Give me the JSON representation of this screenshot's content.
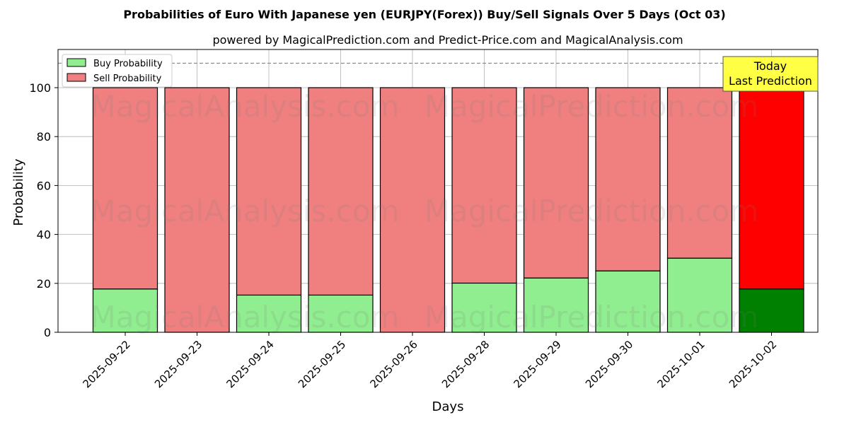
{
  "chart_data": {
    "type": "bar",
    "stacked": true,
    "title": "Probabilities of Euro With Japanese yen (EURJPY(Forex)) Buy/Sell Signals Over 5 Days (Oct 03)",
    "subtitle": "powered by MagicalPrediction.com and Predict-Price.com and MagicalAnalysis.com",
    "xlabel": "Days",
    "ylabel": "Probability",
    "ylim": [
      0,
      115
    ],
    "yticks": [
      0,
      20,
      40,
      60,
      80,
      100
    ],
    "grid": true,
    "legend_position": "top-left",
    "reference_line": 110,
    "categories": [
      "2025-09-22",
      "2025-09-23",
      "2025-09-24",
      "2025-09-25",
      "2025-09-26",
      "2025-09-28",
      "2025-09-29",
      "2025-09-30",
      "2025-10-01",
      "2025-10-02"
    ],
    "series": [
      {
        "name": "Buy Probability",
        "values": [
          17.7,
          0,
          15.2,
          15.2,
          0,
          20.1,
          22.2,
          25.1,
          30.3,
          17.7
        ],
        "color": "#90ee90",
        "highlight_color": "#008000"
      },
      {
        "name": "Sell Probability",
        "values": [
          82.3,
          100,
          84.8,
          84.8,
          100,
          79.9,
          77.8,
          74.9,
          69.7,
          82.3
        ],
        "color": "#f08080",
        "highlight_color": "#ff0000"
      }
    ],
    "annotation": {
      "line1": "Today",
      "line2": "Last Prediction",
      "color": "#ffff44"
    },
    "watermarks": [
      "MagicalAnalysis.com",
      "MagicalPrediction.com"
    ]
  }
}
